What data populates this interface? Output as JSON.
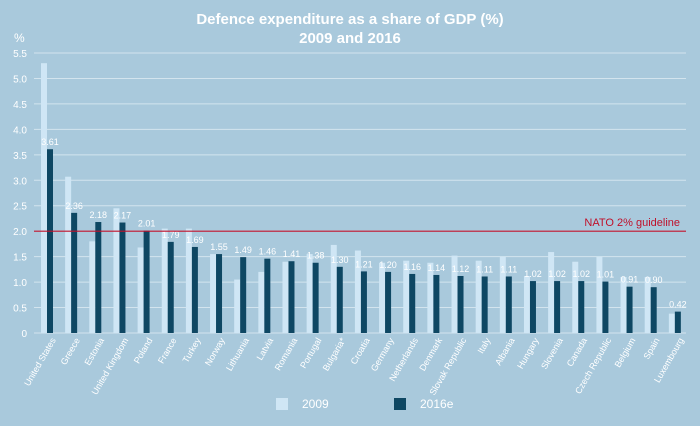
{
  "chart_data": {
    "type": "bar",
    "title_line_1": "Defence expenditure as a share of GDP (%)",
    "title_line_2": "2009 and 2016",
    "y_unit": "%",
    "ylim": [
      0,
      5.5
    ],
    "yticks": [
      "0",
      "0.5",
      "1.0",
      "1.5",
      "2.0",
      "2.5",
      "3.0",
      "3.5",
      "4.0",
      "4.5",
      "5.0",
      "5.5"
    ],
    "categories": [
      "United States",
      "Greece",
      "Estonia",
      "United Kingdom",
      "Poland",
      "France",
      "Turkey",
      "Norway",
      "Lithuania",
      "Latvia",
      "Romania",
      "Portugal",
      "Bulgaria*",
      "Croatia",
      "Germany",
      "Netherlands",
      "Denmark",
      "Slovak Republic",
      "Italy",
      "Albania",
      "Hungary",
      "Slovenia",
      "Canada",
      "Czech Republic",
      "Belgium",
      "Spain",
      "Luxembourg"
    ],
    "series": [
      {
        "name": "2009",
        "color": "#cfe6f5",
        "values": [
          5.3,
          3.07,
          1.8,
          2.45,
          1.68,
          2.05,
          2.05,
          1.55,
          1.05,
          1.2,
          1.4,
          1.55,
          1.73,
          1.62,
          1.38,
          1.42,
          1.38,
          1.52,
          1.42,
          1.5,
          1.12,
          1.59,
          1.4,
          1.5,
          1.1,
          1.1,
          0.38
        ]
      },
      {
        "name": "2016e",
        "color": "#0e4763",
        "values": [
          3.61,
          2.36,
          2.18,
          2.17,
          2.01,
          1.79,
          1.69,
          1.55,
          1.49,
          1.46,
          1.41,
          1.38,
          1.3,
          1.21,
          1.2,
          1.16,
          1.14,
          1.12,
          1.11,
          1.11,
          1.02,
          1.02,
          1.02,
          1.01,
          0.91,
          0.9,
          0.42
        ]
      }
    ],
    "data_labels": [
      "3.61",
      "2.36",
      "2.18",
      "2.17",
      "2.01",
      "1.79",
      "1.69",
      "1.55",
      "1.49",
      "1.46",
      "1.41",
      "1.38",
      "1.30",
      "1.21",
      "1.20",
      "1.16",
      "1.14",
      "1.12",
      "1.11",
      "1.11",
      "1.02",
      "1.02",
      "1.02",
      "1.01",
      "0.91",
      "0.90",
      "0.42"
    ],
    "reference_line": {
      "value": 2.0,
      "label": "NATO 2% guideline",
      "color": "#c0102a"
    },
    "grid_color": "#d3e4ee",
    "legend_position": "bottom-center"
  }
}
